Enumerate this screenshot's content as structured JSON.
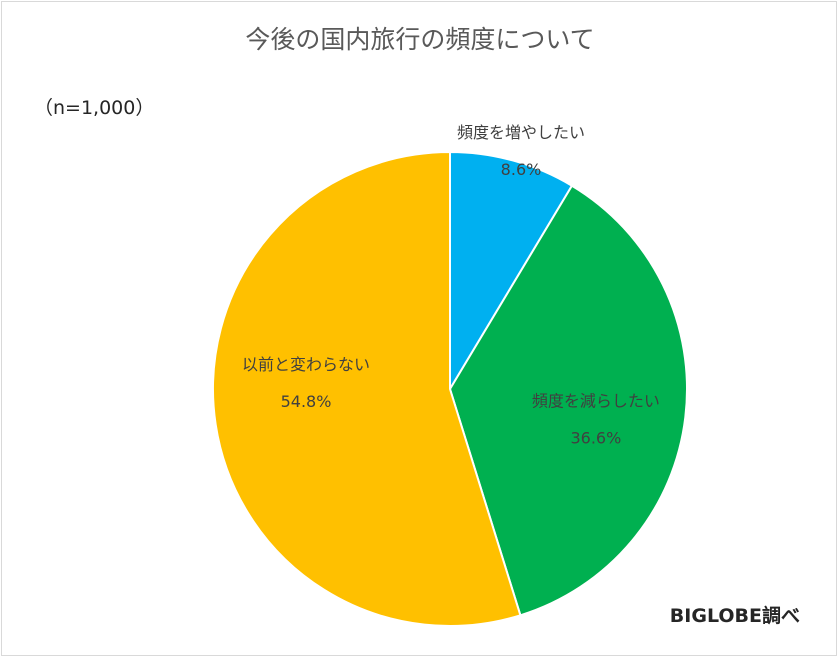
{
  "chart_data": {
    "type": "pie",
    "title": "今後の国内旅行の頻度について",
    "sample_note": "（n=1,000）",
    "credit": "BIGLOBE調べ",
    "slices": [
      {
        "label": "頻度を増やしたい",
        "value": 8.6,
        "display": "8.6%",
        "color": "#00b0f0"
      },
      {
        "label": "頻度を減らしたい",
        "value": 36.6,
        "display": "36.6%",
        "color": "#00b050"
      },
      {
        "label": "以前と変わらない",
        "value": 54.8,
        "display": "54.8%",
        "color": "#ffc000"
      }
    ],
    "start": "12 o'clock",
    "direction": "clockwise",
    "legend": "none"
  }
}
